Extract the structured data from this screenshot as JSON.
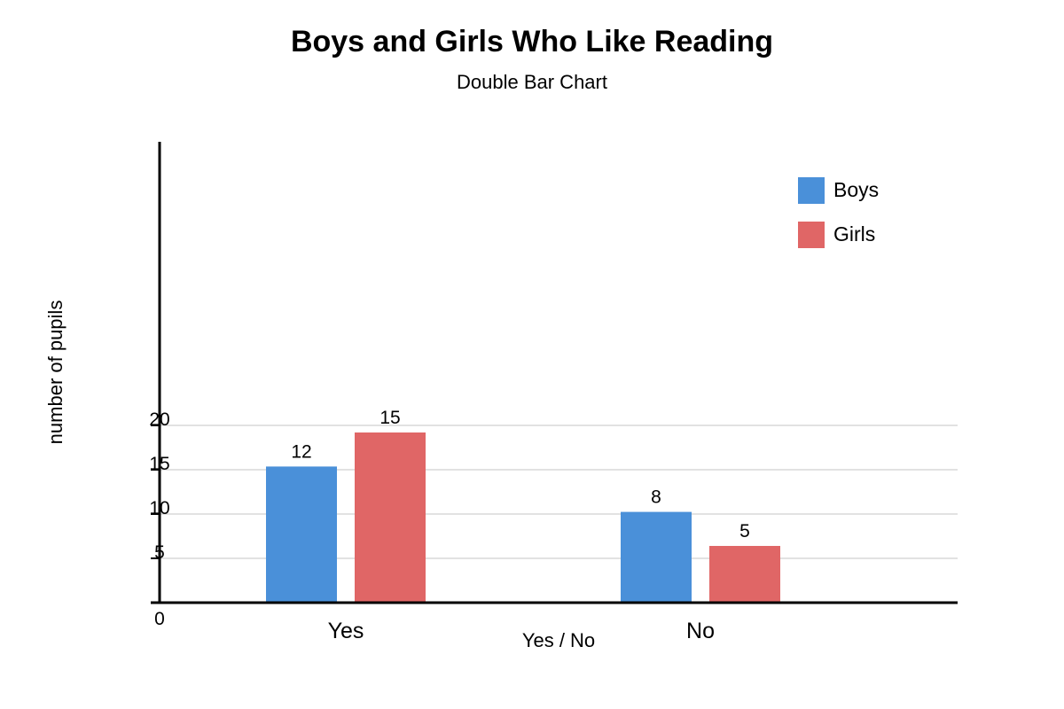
{
  "chart_data": {
    "type": "bar",
    "title": "Boys and Girls Who Like Reading",
    "subtitle": "Double Bar Chart",
    "xlabel": "Yes / No",
    "ylabel": "number of pupils",
    "categories": [
      "Yes",
      "No"
    ],
    "series": [
      {
        "name": "Boys",
        "values": [
          12,
          8
        ],
        "color": "#4a90d9"
      },
      {
        "name": "Girls",
        "values": [
          15,
          5
        ],
        "color": "#e06666"
      }
    ],
    "y_ticks": [
      "0",
      "5",
      "10",
      "15",
      "20"
    ],
    "legend_position": "top-right",
    "grid": true,
    "axis_color": "#000000",
    "grid_color": "#d9d9d9"
  }
}
